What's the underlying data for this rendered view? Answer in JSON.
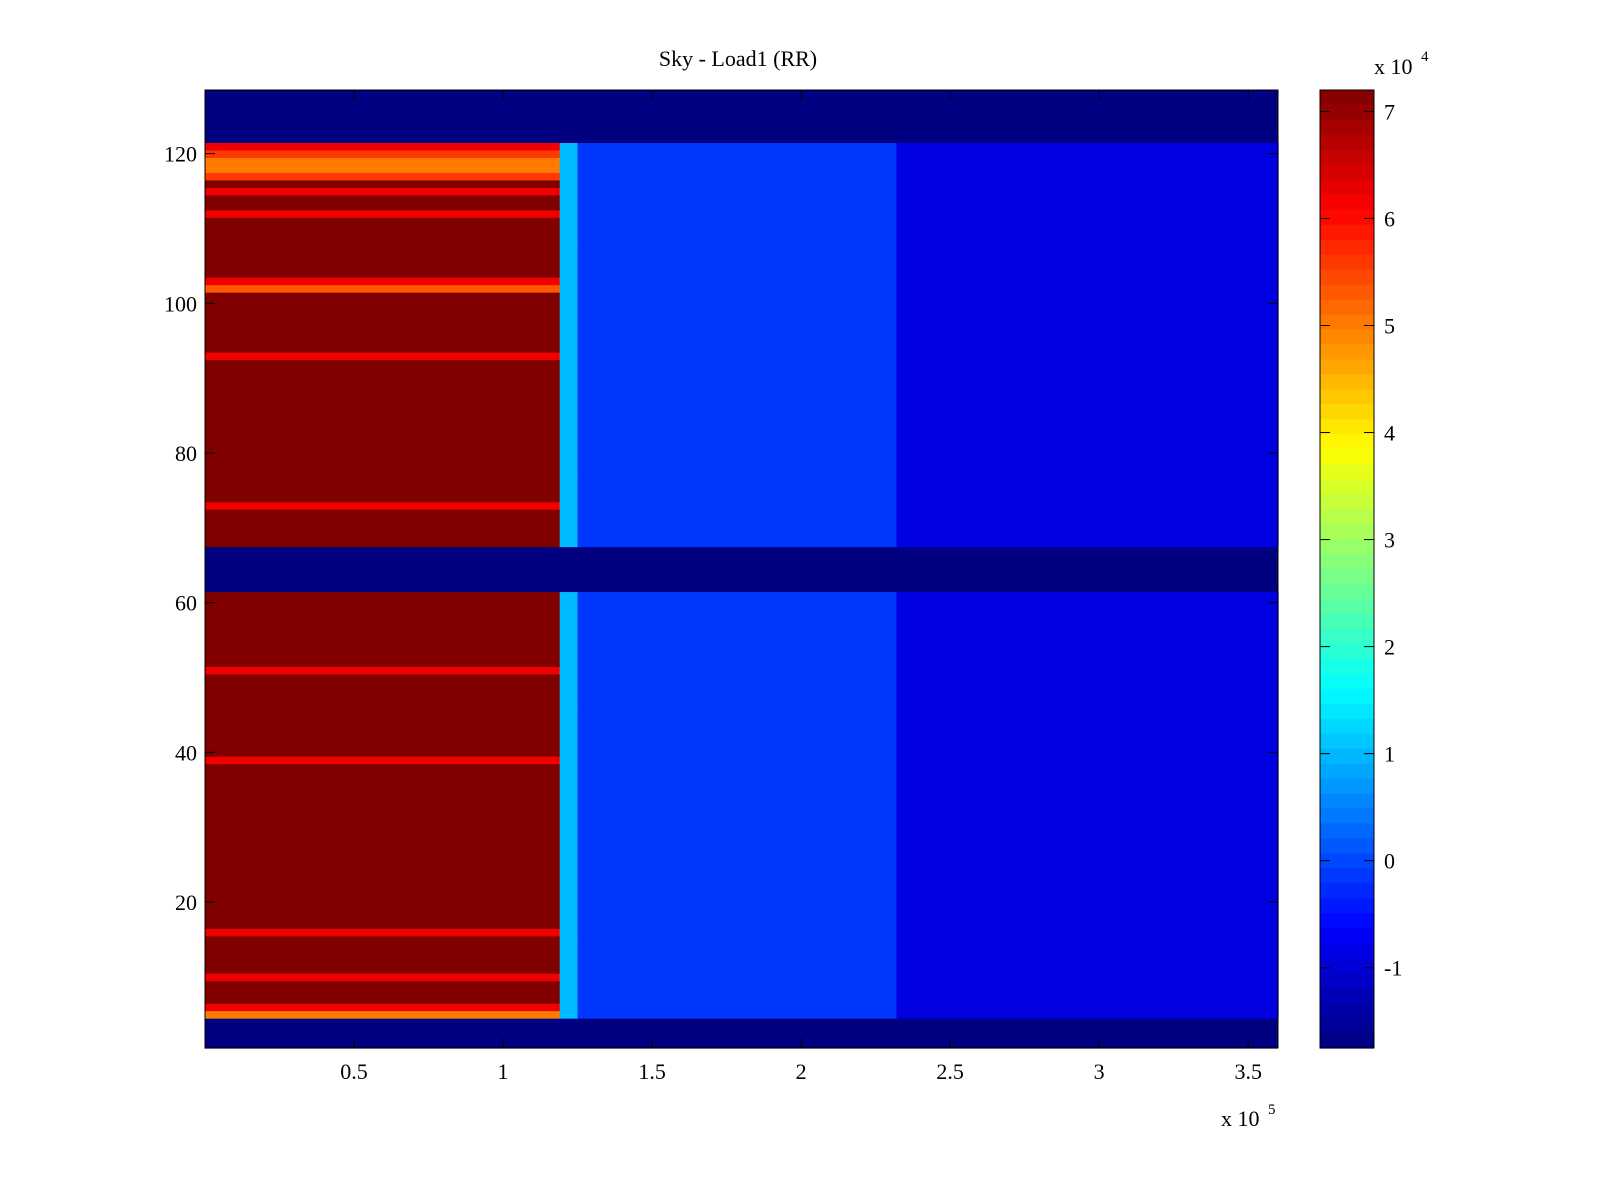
{
  "chart_data": {
    "type": "heatmap",
    "title": "Sky - Load1 (RR)",
    "xlabel": "",
    "ylabel": "",
    "x_multiplier": "x 10",
    "x_exponent": "5",
    "xlim": [
      0,
      3.6
    ],
    "ylim": [
      1,
      128
    ],
    "x_ticks": [
      0.5,
      1,
      1.5,
      2,
      2.5,
      3,
      3.5
    ],
    "x_tick_labels": [
      "0.5",
      "1",
      "1.5",
      "2",
      "2.5",
      "3",
      "3.5"
    ],
    "y_ticks": [
      20,
      40,
      60,
      80,
      100,
      120
    ],
    "y_tick_labels": [
      "20",
      "40",
      "60",
      "80",
      "100",
      "120"
    ],
    "colormap": "jet",
    "colorbar": {
      "multiplier": "x 10",
      "exponent": "4",
      "clim": [
        -1.75,
        7.2
      ],
      "ticks": [
        -1,
        0,
        1,
        2,
        3,
        4,
        5,
        6,
        7
      ],
      "tick_labels": [
        "-1",
        "0",
        "1",
        "2",
        "3",
        "4",
        "5",
        "6",
        "7"
      ]
    },
    "x_regions": [
      {
        "x_start": 0,
        "x_end": 1.19,
        "level": 7.2
      },
      {
        "x_start": 1.19,
        "x_end": 1.25,
        "level": 1.0
      },
      {
        "x_start": 1.25,
        "x_end": 2.32,
        "level": -0.15
      },
      {
        "x_start": 2.32,
        "x_end": 3.6,
        "level": -0.9
      }
    ],
    "masked_channel_ranges": [
      [
        1,
        4
      ],
      [
        62,
        67
      ],
      [
        122,
        128
      ]
    ],
    "row_overrides_first_region": [
      {
        "channel": 5,
        "level": 5.0
      },
      {
        "channel": 6,
        "level": 6.2
      },
      {
        "channel": 10,
        "level": 6.2
      },
      {
        "channel": 16,
        "level": 6.2
      },
      {
        "channel": 39,
        "level": 6.2
      },
      {
        "channel": 51,
        "level": 6.2
      },
      {
        "channel": 73,
        "level": 6.2
      },
      {
        "channel": 93,
        "level": 6.2
      },
      {
        "channel": 102,
        "level": 5.3
      },
      {
        "channel": 103,
        "level": 6.2
      },
      {
        "channel": 112,
        "level": 6.2
      },
      {
        "channel": 115,
        "level": 6.2
      },
      {
        "channel": 117,
        "level": 5.6
      },
      {
        "channel": 118,
        "level": 5.0
      },
      {
        "channel": 119,
        "level": 5.0
      },
      {
        "channel": 120,
        "level": 5.6
      },
      {
        "channel": 121,
        "level": 6.2
      }
    ],
    "grid": false,
    "legend": "none"
  }
}
